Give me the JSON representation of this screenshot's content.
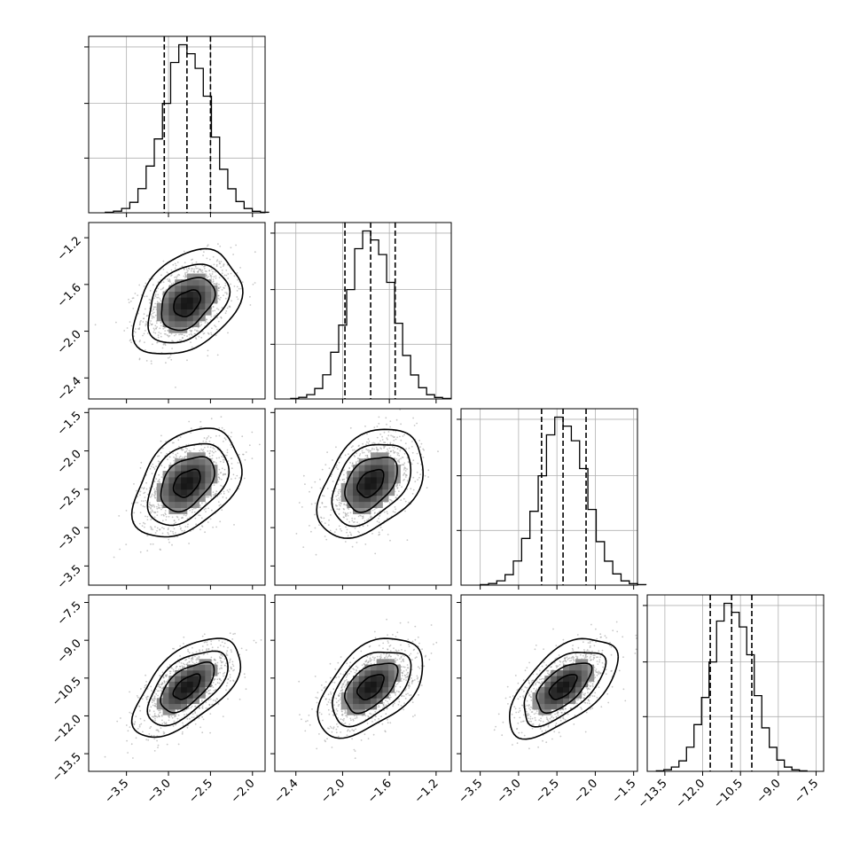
{
  "chart_data": {
    "type": "corner",
    "parameters": 4,
    "title": "",
    "axes_labels": [
      "",
      "",
      "",
      ""
    ],
    "ranges": [
      [
        -3.95,
        -1.85
      ],
      [
        -2.58,
        -1.07
      ],
      [
        -3.75,
        -1.45
      ],
      [
        -14.2,
        -7.2
      ]
    ],
    "ticks": [
      {
        "values": [
          -3.5,
          -3.0,
          -2.5,
          -2.0
        ],
        "labels": [
          "−3.5",
          "−3.0",
          "−2.5",
          "−2.0"
        ]
      },
      {
        "values": [
          -2.4,
          -2.0,
          -1.6,
          -1.2
        ],
        "labels": [
          "−2.4",
          "−2.0",
          "−1.6",
          "−1.2"
        ]
      },
      {
        "values": [
          -3.5,
          -3.0,
          -2.5,
          -2.0,
          -1.5
        ],
        "labels": [
          "−3.5",
          "−3.0",
          "−2.5",
          "−2.0",
          "−1.5"
        ]
      },
      {
        "values": [
          -13.5,
          -12.0,
          -10.5,
          -9.0,
          -7.5
        ],
        "labels": [
          "−13.5",
          "−12.0",
          "−10.5",
          "−9.0",
          "−7.5"
        ]
      }
    ],
    "marginals": [
      {
        "mean": -2.78,
        "std": 0.27,
        "quantiles": [
          -3.05,
          -2.78,
          -2.5
        ]
      },
      {
        "mean": -1.76,
        "std": 0.19,
        "quantiles": [
          -1.98,
          -1.76,
          -1.55
        ]
      },
      {
        "mean": -2.42,
        "std": 0.3,
        "quantiles": [
          -2.7,
          -2.42,
          -2.12
        ]
      },
      {
        "mean": -10.85,
        "std": 0.83,
        "quantiles": [
          -11.7,
          -10.85,
          -10.05
        ]
      }
    ],
    "correlations": [
      [
        1.0,
        0.35,
        0.4,
        0.6
      ],
      [
        0.35,
        1.0,
        0.4,
        0.5
      ],
      [
        0.4,
        0.4,
        1.0,
        0.6
      ],
      [
        0.6,
        0.5,
        0.6,
        1.0
      ]
    ],
    "histogram_bins": 20,
    "contour_levels_sigma": [
      0.5,
      1.0,
      1.5,
      2.0
    ],
    "grid": true,
    "colors": {
      "points": "#9a9a9a",
      "lines": "#000000"
    }
  }
}
